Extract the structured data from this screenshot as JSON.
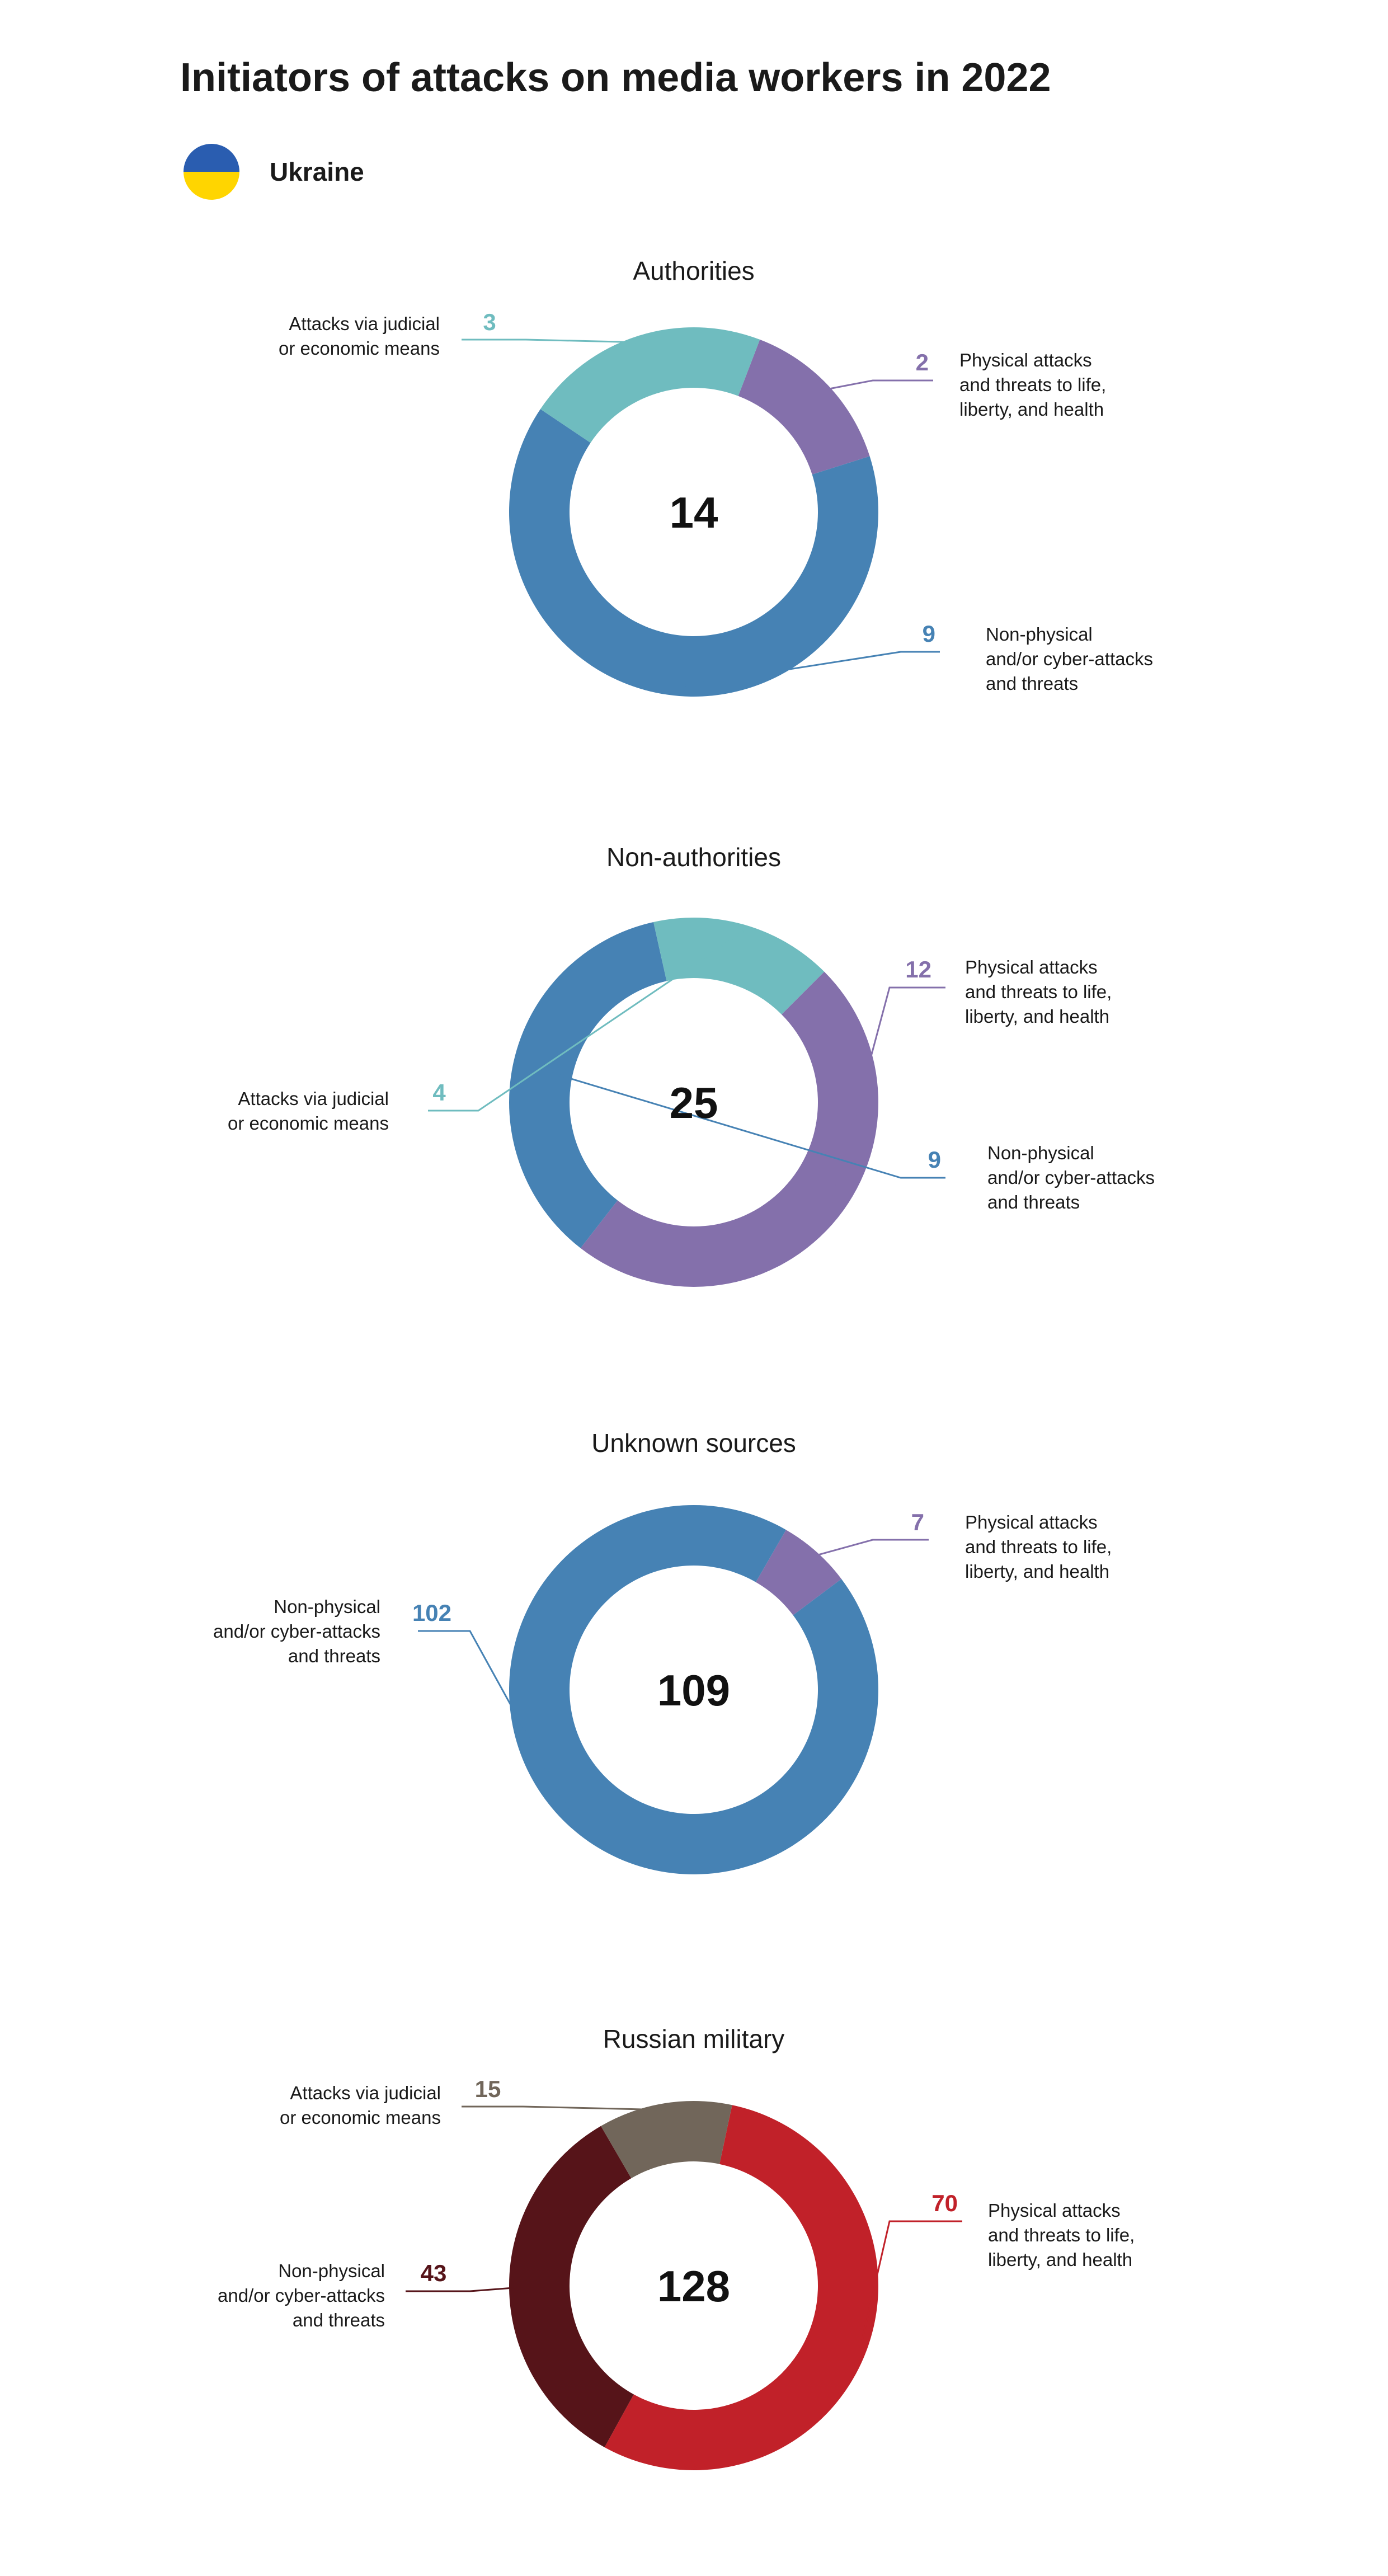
{
  "page": {
    "title": "Initiators of attacks on media workers in 2022",
    "country": "Ukraine",
    "flag_colors": {
      "top": "#2a5db0",
      "bottom": "#ffd500"
    }
  },
  "chart_data": [
    {
      "type": "pie",
      "title": "Authorities",
      "total": 14,
      "series": [
        {
          "name": "Physical attacks and threats to life, liberty, and health",
          "label_lines": [
            "Physical attacks",
            "and threats to life,",
            "liberty, and health"
          ],
          "value": 2,
          "color": "#8470ab"
        },
        {
          "name": "Non-physical and/or cyber-attacks and threats",
          "label_lines": [
            "Non-physical",
            "and/or cyber-attacks",
            "and threats"
          ],
          "value": 9,
          "color": "#4682b4"
        },
        {
          "name": "Attacks via judicial or economic means",
          "label_lines": [
            "Attacks via judicial",
            "or economic means"
          ],
          "value": 3,
          "color": "#6fbcbf"
        }
      ]
    },
    {
      "type": "pie",
      "title": "Non-authorities",
      "total": 25,
      "series": [
        {
          "name": "Physical attacks and threats to life, liberty, and health",
          "label_lines": [
            "Physical attacks",
            "and threats to life,",
            "liberty, and health"
          ],
          "value": 12,
          "color": "#8470ab"
        },
        {
          "name": "Non-physical and/or cyber-attacks and threats",
          "label_lines": [
            "Non-physical",
            "and/or cyber-attacks",
            "and threats"
          ],
          "value": 9,
          "color": "#4682b4"
        },
        {
          "name": "Attacks via judicial or economic means",
          "label_lines": [
            "Attacks via judicial",
            "or economic means"
          ],
          "value": 4,
          "color": "#6fbcbf"
        }
      ]
    },
    {
      "type": "pie",
      "title": "Unknown sources",
      "total": 109,
      "series": [
        {
          "name": "Physical attacks and threats to life, liberty, and health",
          "label_lines": [
            "Physical attacks",
            "and threats to life,",
            "liberty, and health"
          ],
          "value": 7,
          "color": "#8470ab"
        },
        {
          "name": "Non-physical and/or cyber-attacks and threats",
          "label_lines": [
            "Non-physical",
            "and/or cyber-attacks",
            "and threats"
          ],
          "value": 102,
          "color": "#4682b4"
        }
      ]
    },
    {
      "type": "pie",
      "title": "Russian military",
      "total": 128,
      "series": [
        {
          "name": "Physical attacks and threats to life, liberty, and health",
          "label_lines": [
            "Physical attacks",
            "and threats to life,",
            "liberty, and health"
          ],
          "value": 70,
          "color": "#c12129"
        },
        {
          "name": "Non-physical and/or cyber-attacks and threats",
          "label_lines": [
            "Non-physical",
            "and/or cyber-attacks",
            "and threats"
          ],
          "value": 43,
          "color": "#561419"
        },
        {
          "name": "Attacks via judicial or economic means",
          "label_lines": [
            "Attacks via judicial",
            "or economic means"
          ],
          "value": 15,
          "color": "#71665a"
        }
      ]
    }
  ]
}
